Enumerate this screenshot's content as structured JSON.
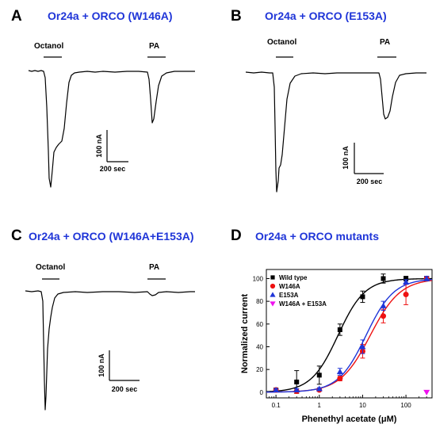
{
  "panels": {
    "A": {
      "letter": "A",
      "title": "Or24a + ORCO (W146A)",
      "stim1": "Octanol",
      "stim2": "PA",
      "scale_y": "100 nA",
      "scale_x": "200 sec"
    },
    "B": {
      "letter": "B",
      "title": "Or24a + ORCO (E153A)",
      "stim1": "Octanol",
      "stim2": "PA",
      "scale_y": "100 nA",
      "scale_x": "200 sec"
    },
    "C": {
      "letter": "C",
      "title": "Or24a + ORCO (W146A+E153A)",
      "stim1": "Octanol",
      "stim2": "PA",
      "scale_y": "100 nA",
      "scale_x": "200 sec"
    },
    "D": {
      "letter": "D",
      "title": "Or24a + ORCO mutants"
    }
  },
  "chart_data": {
    "type": "scatter",
    "title": "Or24a + ORCO mutants",
    "xlabel": "Phenethyl acetate (μM)",
    "ylabel": "Normalized current",
    "xscale": "log",
    "xlim": [
      0.06,
      400
    ],
    "ylim": [
      -5,
      108
    ],
    "xticks": [
      0.1,
      1,
      10,
      100
    ],
    "xtick_labels": [
      "0.1",
      "1",
      "10",
      "100"
    ],
    "yticks": [
      0,
      20,
      40,
      60,
      80,
      100
    ],
    "ytick_labels": [
      "0",
      "20",
      "40",
      "60",
      "80",
      "100"
    ],
    "legend_position": "upper-left",
    "series": [
      {
        "name": "Wild type",
        "marker": "square",
        "color": "#000000",
        "x": [
          0.1,
          0.3,
          1,
          3,
          10,
          30,
          100,
          300
        ],
        "y": [
          2,
          9,
          15,
          55,
          84,
          100,
          100,
          100
        ],
        "err": [
          1,
          10,
          8,
          5,
          5,
          4,
          2,
          2
        ],
        "fit": {
          "ec50": 2.7,
          "hill": 1.4
        }
      },
      {
        "name": "W146A",
        "marker": "circle",
        "color": "#ee1111",
        "x": [
          0.1,
          0.3,
          1,
          3,
          10,
          30,
          100,
          300
        ],
        "y": [
          2,
          1,
          2,
          12,
          36,
          67,
          86,
          100
        ],
        "err": [
          1,
          2,
          1,
          2,
          6,
          6,
          9,
          2
        ],
        "fit": {
          "ec50": 15,
          "hill": 1.25
        }
      },
      {
        "name": "E153A",
        "marker": "triangle-up",
        "color": "#1f35d8",
        "x": [
          0.1,
          0.3,
          1,
          3,
          10,
          30,
          100,
          300
        ],
        "y": [
          2,
          2,
          3,
          18,
          40,
          76,
          97,
          100
        ],
        "err": [
          1,
          1,
          1,
          3,
          6,
          4,
          2,
          2
        ],
        "fit": {
          "ec50": 12,
          "hill": 1.35
        }
      },
      {
        "name": "W146A + E153A",
        "marker": "triangle-down",
        "color": "#ee11ee",
        "x": [
          300
        ],
        "y": [
          0
        ],
        "err": [
          0
        ]
      }
    ]
  }
}
